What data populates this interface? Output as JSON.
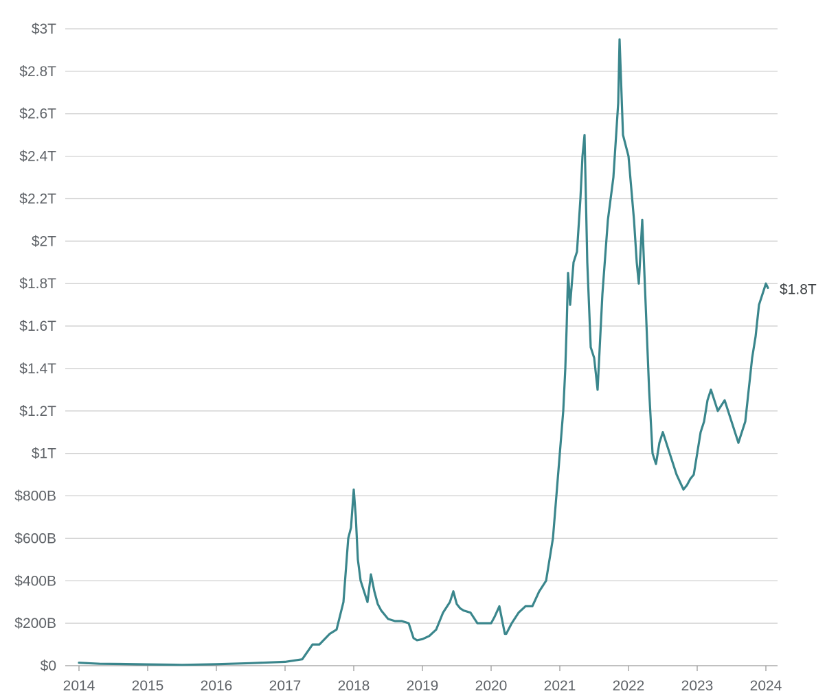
{
  "chart_data": {
    "type": "line",
    "title": "",
    "xlabel": "",
    "ylabel": "",
    "line_color": "#3a868c",
    "grid": true,
    "legend": "none",
    "xlim": [
      2014.0,
      2024.2
    ],
    "ylim": [
      0,
      3000
    ],
    "x_ticks": [
      2014,
      2015,
      2016,
      2017,
      2018,
      2019,
      2020,
      2021,
      2022,
      2023,
      2024
    ],
    "x_tick_labels": [
      "2014",
      "2015",
      "2016",
      "2017",
      "2018",
      "2019",
      "2020",
      "2021",
      "2022",
      "2023",
      "2024"
    ],
    "y_ticks": [
      0,
      200,
      400,
      600,
      800,
      1000,
      1200,
      1400,
      1600,
      1800,
      2000,
      2200,
      2400,
      2600,
      2800,
      3000
    ],
    "y_tick_labels": [
      "$0",
      "$200B",
      "$400B",
      "$600B",
      "$800B",
      "$1T",
      "$1.2T",
      "$1.4T",
      "$1.6T",
      "$1.8T",
      "$2T",
      "$2.2T",
      "$2.4T",
      "$2.6T",
      "$2.8T",
      "$3T"
    ],
    "end_label": "$1.8T",
    "series": [
      {
        "x": [
          2014.0,
          2014.3,
          2014.6,
          2015.0,
          2015.5,
          2016.0,
          2016.5,
          2017.0,
          2017.25,
          2017.4,
          2017.5,
          2017.65,
          2017.75,
          2017.85,
          2017.92,
          2017.96,
          2018.0,
          2018.03,
          2018.06,
          2018.1,
          2018.15,
          2018.2,
          2018.25,
          2018.3,
          2018.35,
          2018.4,
          2018.5,
          2018.6,
          2018.7,
          2018.8,
          2018.87,
          2018.92,
          2019.0,
          2019.1,
          2019.2,
          2019.3,
          2019.4,
          2019.45,
          2019.5,
          2019.55,
          2019.6,
          2019.7,
          2019.8,
          2019.9,
          2020.0,
          2020.05,
          2020.12,
          2020.2,
          2020.22,
          2020.3,
          2020.4,
          2020.5,
          2020.6,
          2020.7,
          2020.8,
          2020.9,
          2021.0,
          2021.05,
          2021.08,
          2021.1,
          2021.12,
          2021.15,
          2021.2,
          2021.25,
          2021.3,
          2021.33,
          2021.36,
          2021.4,
          2021.45,
          2021.5,
          2021.55,
          2021.62,
          2021.7,
          2021.78,
          2021.85,
          2021.87,
          2021.92,
          2022.0,
          2022.08,
          2022.12,
          2022.15,
          2022.2,
          2022.25,
          2022.3,
          2022.35,
          2022.4,
          2022.45,
          2022.5,
          2022.55,
          2022.6,
          2022.7,
          2022.8,
          2022.85,
          2022.9,
          2022.95,
          2023.0,
          2023.05,
          2023.1,
          2023.15,
          2023.2,
          2023.25,
          2023.3,
          2023.4,
          2023.5,
          2023.55,
          2023.6,
          2023.65,
          2023.7,
          2023.75,
          2023.8,
          2023.85,
          2023.9,
          2023.95,
          2024.0,
          2024.03
        ],
        "y": [
          14,
          9,
          8,
          6,
          4,
          7,
          12,
          18,
          30,
          100,
          100,
          150,
          170,
          300,
          600,
          650,
          830,
          700,
          500,
          400,
          350,
          300,
          430,
          350,
          290,
          260,
          220,
          210,
          210,
          200,
          130,
          120,
          125,
          140,
          170,
          250,
          300,
          350,
          290,
          270,
          260,
          250,
          200,
          200,
          200,
          230,
          280,
          150,
          150,
          200,
          250,
          280,
          280,
          350,
          400,
          600,
          1000,
          1200,
          1400,
          1600,
          1850,
          1700,
          1900,
          1950,
          2200,
          2400,
          2500,
          1900,
          1500,
          1450,
          1300,
          1750,
          2100,
          2300,
          2650,
          2950,
          2500,
          2400,
          2100,
          1900,
          1800,
          2100,
          1700,
          1300,
          1000,
          950,
          1050,
          1100,
          1050,
          1000,
          900,
          830,
          850,
          880,
          900,
          1000,
          1100,
          1150,
          1250,
          1300,
          1250,
          1200,
          1250,
          1150,
          1100,
          1050,
          1100,
          1150,
          1300,
          1450,
          1550,
          1700,
          1750,
          1800,
          1780
        ]
      }
    ]
  }
}
